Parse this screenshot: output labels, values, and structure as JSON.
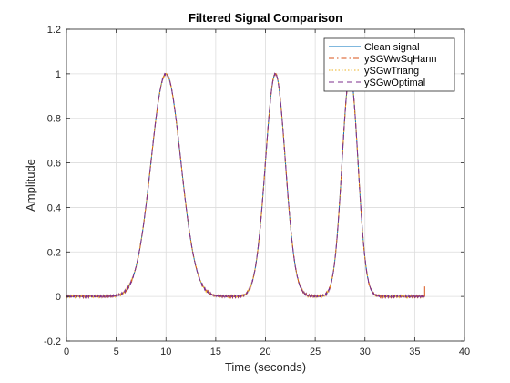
{
  "chart_data": {
    "type": "line",
    "title": "Filtered Signal Comparison",
    "xlabel": "Time (seconds)",
    "ylabel": "Amplitude",
    "xlim": [
      0,
      40
    ],
    "ylim": [
      -0.2,
      1.2
    ],
    "xticks": [
      0,
      5,
      10,
      15,
      20,
      25,
      30,
      35,
      40
    ],
    "yticks": [
      -0.2,
      0,
      0.2,
      0.4,
      0.6,
      0.8,
      1,
      1.2
    ],
    "grid": true,
    "legend_position": "top-right",
    "x_range": [
      0,
      36
    ],
    "peaks": [
      {
        "center": 10,
        "height": 1.0,
        "width": 1.5
      },
      {
        "center": 21,
        "height": 1.0,
        "width": 1.0
      },
      {
        "center": 28.5,
        "height": 1.0,
        "width": 0.8
      }
    ],
    "series": [
      {
        "name": "Clean signal",
        "color": "#0072BD",
        "style": "solid"
      },
      {
        "name": "ySGWwSqHann",
        "color": "#D95319",
        "style": "dashdot"
      },
      {
        "name": "ySGwTriang",
        "color": "#EDB120",
        "style": "dotted"
      },
      {
        "name": "ySGwOptimal",
        "color": "#7E2F8E",
        "style": "dashed"
      }
    ]
  }
}
